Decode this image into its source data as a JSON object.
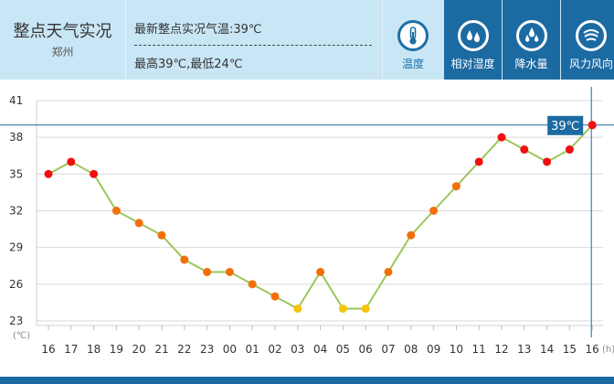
{
  "header": {
    "title": "整点天气实况",
    "city": "郑州",
    "latest_temp": "最新整点实况气温:39℃",
    "range": "最高39℃,最低24℃"
  },
  "tabs": [
    {
      "label": "温度",
      "icon": "thermometer-icon",
      "active": true
    },
    {
      "label": "相对湿度",
      "icon": "humidity-icon",
      "active": false
    },
    {
      "label": "降水量",
      "icon": "rain-icon",
      "active": false
    },
    {
      "label": "风力风向",
      "icon": "wind-icon",
      "active": false
    }
  ],
  "colors": {
    "line": "#9cc75b",
    "hot": "#f01010",
    "warm": "#f26f0a",
    "mild": "#f6c40a",
    "header_bg": "#c9e6f6",
    "tab_dark": "#1c6aa2"
  },
  "chart_data": {
    "type": "line",
    "x_unit": "(h)",
    "y_unit": "(℃)",
    "categories": [
      "16",
      "17",
      "18",
      "19",
      "20",
      "21",
      "22",
      "23",
      "00",
      "01",
      "02",
      "03",
      "04",
      "05",
      "06",
      "07",
      "08",
      "09",
      "10",
      "11",
      "12",
      "13",
      "14",
      "15",
      "16"
    ],
    "values": [
      35,
      36,
      35,
      32,
      31,
      30,
      28,
      27,
      27,
      26,
      25,
      24,
      27,
      24,
      24,
      27,
      30,
      32,
      34,
      36,
      38,
      37,
      36,
      37,
      39
    ],
    "y_ticks": [
      41,
      38,
      35,
      32,
      29,
      26,
      23
    ],
    "ylim": [
      23,
      41
    ],
    "grid": true,
    "current_label": "39℃"
  }
}
